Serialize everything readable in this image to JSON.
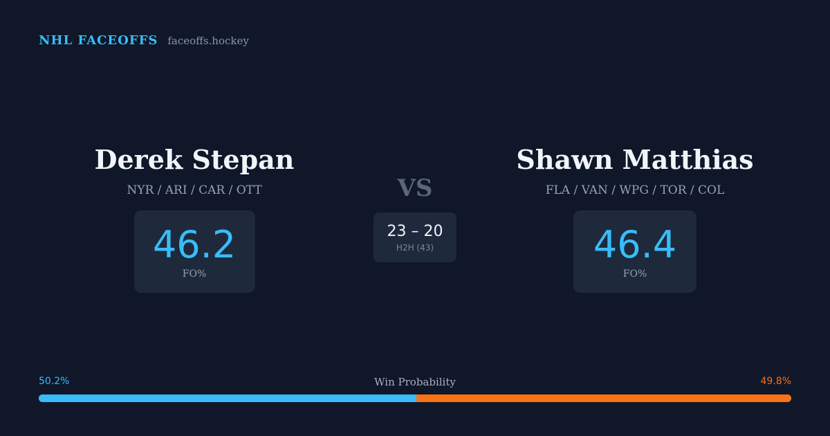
{
  "brand": {
    "name": "NHL FACEOFFS",
    "domain": "faceoffs.hockey"
  },
  "players": [
    {
      "name": "Derek Stepan",
      "teams": "NYR / ARI / CAR / OTT",
      "stat_value": "46.2",
      "stat_label": "FO%"
    },
    {
      "name": "Shawn Matthias",
      "teams": "FLA / VAN / WPG / TOR / COL",
      "stat_value": "46.4",
      "stat_label": "FO%"
    }
  ],
  "vs_label": "VS",
  "h2h": {
    "score": "23 – 20",
    "label": "H2H (43)"
  },
  "win_probability": {
    "title": "Win Probability",
    "left_label": "50.2%",
    "right_label": "49.8%",
    "left_fraction": 0.502,
    "right_fraction": 0.498
  },
  "colors": {
    "background": "#0f1729",
    "accent_blue": "#38bdf8",
    "accent_orange": "#f97316",
    "card": "#1e293b"
  }
}
